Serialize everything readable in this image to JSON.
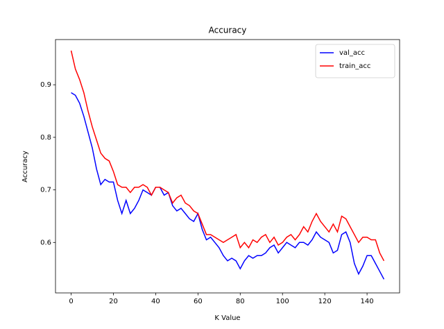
{
  "chart_data": {
    "type": "line",
    "title": "Accuracy",
    "x_label": "K Value",
    "y_label": "Accuracy",
    "x": [
      0,
      2,
      4,
      6,
      8,
      10,
      12,
      14,
      16,
      18,
      20,
      22,
      24,
      26,
      28,
      30,
      32,
      34,
      36,
      38,
      40,
      42,
      44,
      46,
      48,
      50,
      52,
      54,
      56,
      58,
      60,
      62,
      64,
      66,
      68,
      70,
      72,
      74,
      76,
      78,
      80,
      82,
      84,
      86,
      88,
      90,
      92,
      94,
      96,
      98,
      100,
      102,
      104,
      106,
      108,
      110,
      112,
      114,
      116,
      118,
      120,
      122,
      124,
      126,
      128,
      130,
      132,
      134,
      136,
      138,
      140,
      142,
      144,
      146,
      148
    ],
    "series": [
      {
        "name": "val_acc",
        "color": "#0000ff",
        "values": [
          0.885,
          0.88,
          0.865,
          0.84,
          0.81,
          0.78,
          0.74,
          0.71,
          0.72,
          0.715,
          0.715,
          0.68,
          0.655,
          0.68,
          0.655,
          0.665,
          0.68,
          0.7,
          0.695,
          0.69,
          0.705,
          0.705,
          0.69,
          0.695,
          0.67,
          0.66,
          0.665,
          0.655,
          0.645,
          0.64,
          0.655,
          0.625,
          0.605,
          0.61,
          0.6,
          0.59,
          0.575,
          0.565,
          0.57,
          0.565,
          0.55,
          0.565,
          0.575,
          0.57,
          0.575,
          0.575,
          0.58,
          0.59,
          0.595,
          0.58,
          0.59,
          0.6,
          0.595,
          0.59,
          0.6,
          0.6,
          0.595,
          0.605,
          0.62,
          0.61,
          0.605,
          0.6,
          0.58,
          0.585,
          0.615,
          0.62,
          0.6,
          0.56,
          0.54,
          0.555,
          0.575,
          0.575,
          0.56,
          0.545,
          0.53
        ]
      },
      {
        "name": "train_acc",
        "color": "#ff0000",
        "values": [
          0.965,
          0.93,
          0.91,
          0.885,
          0.85,
          0.82,
          0.795,
          0.77,
          0.76,
          0.755,
          0.735,
          0.71,
          0.705,
          0.705,
          0.695,
          0.705,
          0.705,
          0.71,
          0.705,
          0.69,
          0.705,
          0.705,
          0.7,
          0.695,
          0.675,
          0.685,
          0.69,
          0.675,
          0.67,
          0.66,
          0.655,
          0.635,
          0.615,
          0.615,
          0.61,
          0.605,
          0.6,
          0.605,
          0.61,
          0.615,
          0.59,
          0.6,
          0.59,
          0.605,
          0.6,
          0.61,
          0.615,
          0.6,
          0.61,
          0.595,
          0.6,
          0.61,
          0.615,
          0.605,
          0.615,
          0.63,
          0.62,
          0.64,
          0.655,
          0.64,
          0.63,
          0.62,
          0.635,
          0.62,
          0.65,
          0.645,
          0.63,
          0.615,
          0.6,
          0.61,
          0.61,
          0.605,
          0.605,
          0.58,
          0.565
        ]
      }
    ],
    "xlim": [
      -7.4,
      155.4
    ],
    "ylim": [
      0.504,
      0.986
    ],
    "xticks": [
      0,
      20,
      40,
      60,
      80,
      100,
      120,
      140
    ],
    "yticks": [
      0.6,
      0.7,
      0.8,
      0.9
    ],
    "legend": "upper right"
  }
}
